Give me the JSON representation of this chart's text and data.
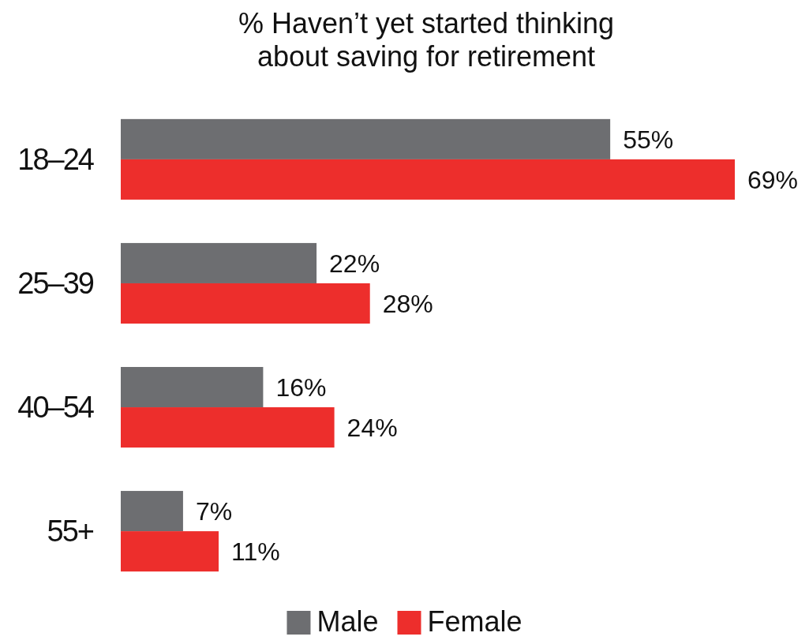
{
  "chart_data": {
    "type": "bar",
    "orientation": "horizontal",
    "title": "% Haven’t yet started thinking about saving for retirement",
    "categories": [
      "18–24",
      "25–39",
      "40–54",
      "55+"
    ],
    "series": [
      {
        "name": "Male",
        "color": "#6d6e71",
        "values": [
          55,
          22,
          16,
          7
        ],
        "value_labels": [
          "55%",
          "22%",
          "16%",
          "7%"
        ]
      },
      {
        "name": "Female",
        "color": "#ed2e2c",
        "values": [
          69,
          28,
          24,
          11
        ],
        "value_labels": [
          "69%",
          "28%",
          "24%",
          "11%"
        ]
      }
    ],
    "tick_labels": "y",
    "grid": false,
    "legend": "bottom"
  }
}
